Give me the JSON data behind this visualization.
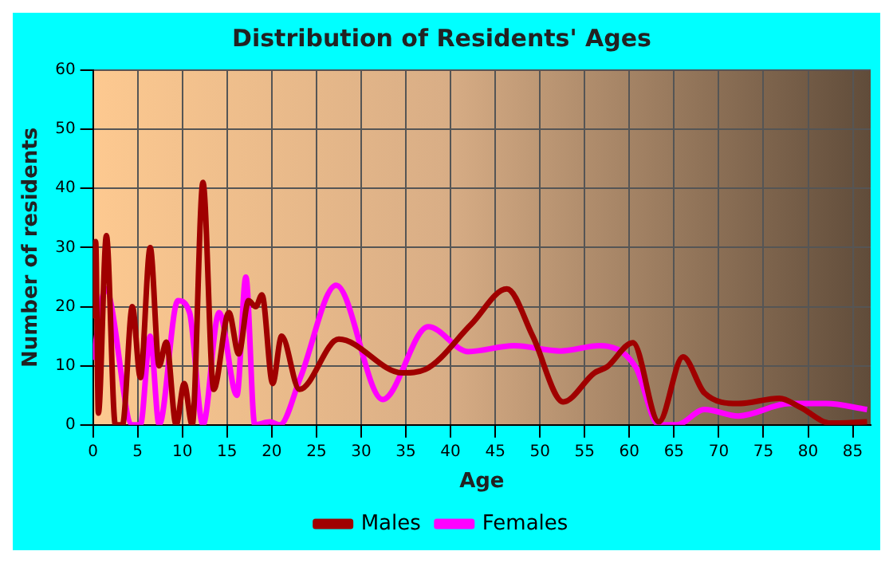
{
  "chart_data": {
    "type": "line",
    "title": "Distribution of Residents' Ages",
    "xlabel": "Age",
    "ylabel": "Number of residents",
    "xlim": [
      0,
      87
    ],
    "xticks": [
      0,
      5,
      10,
      15,
      20,
      25,
      30,
      35,
      40,
      45,
      50,
      55,
      60,
      65,
      70,
      75,
      80,
      85
    ],
    "ylim": [
      0,
      60
    ],
    "yticks": [
      0,
      10,
      20,
      30,
      40,
      50,
      60
    ],
    "grid": true,
    "legend": "bottom",
    "marker": "none",
    "line_style": "solid",
    "series": [
      {
        "name": "Males",
        "color": "#a00000",
        "x": [
          0,
          0.3,
          0.6,
          1.5,
          2.5,
          3.3,
          4.4,
          5.3,
          6.4,
          7.4,
          8.2,
          9.3,
          10.2,
          11.1,
          12.3,
          13.5,
          15.2,
          16.3,
          17.4,
          18.2,
          18.9,
          20.1,
          21.1,
          23.1,
          27.5,
          34.6,
          37.2,
          42.3,
          46.3,
          49.2,
          52.6,
          56.1,
          57.5,
          60.4,
          63.3,
          66,
          68.4,
          72.2,
          76.8,
          79.1,
          82.5,
          86.6
        ],
        "values": [
          18,
          31,
          2,
          32,
          0,
          0,
          20,
          8,
          30,
          10,
          14,
          0,
          7,
          0,
          41,
          6,
          19,
          12,
          21,
          20,
          22,
          7,
          15,
          6,
          14.5,
          8.8,
          9.4,
          17,
          23,
          15,
          3.9,
          8.8,
          9.8,
          13.9,
          0.5,
          11.5,
          5.4,
          3.6,
          4.5,
          3,
          0.3,
          0.5
        ]
      },
      {
        "name": "Females",
        "color": "#ff00ff",
        "x": [
          0,
          0.3,
          1.4,
          4.4,
          5.3,
          6.4,
          7.4,
          9.5,
          10.8,
          12.3,
          14.1,
          16.1,
          17.1,
          18.1,
          19.8,
          20.9,
          23.2,
          27.2,
          32.4,
          37.5,
          42,
          47.1,
          52.3,
          56.7,
          60.7,
          63.3,
          65.3,
          68.4,
          72.2,
          77.9,
          82,
          86.6
        ],
        "values": [
          11,
          14,
          23,
          0,
          0,
          15,
          0,
          21,
          19,
          0,
          19,
          5,
          25,
          0,
          0.5,
          0,
          8,
          23.6,
          4.3,
          16.6,
          12.4,
          13.4,
          12.5,
          13.4,
          9.8,
          0,
          0,
          2.6,
          1.5,
          3.6,
          3.6,
          2.6
        ]
      }
    ]
  }
}
